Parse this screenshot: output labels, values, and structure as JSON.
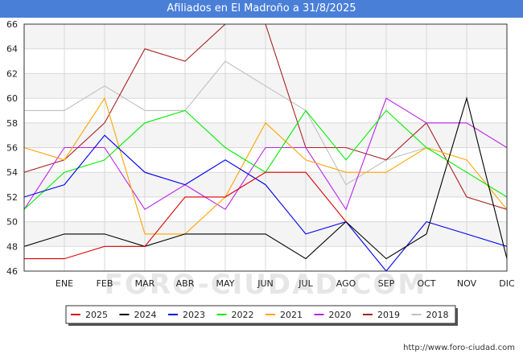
{
  "footer_url": "http://www.foro-ciudad.com",
  "watermark": "FORO-CIUDAD.COM",
  "chart_data": {
    "type": "line",
    "title": "Afiliados en El Madroño a 31/8/2025",
    "xlabel": "",
    "ylabel": "",
    "categories": [
      "",
      "ENE",
      "FEB",
      "MAR",
      "ABR",
      "MAY",
      "JUN",
      "JUL",
      "AGO",
      "SEP",
      "OCT",
      "NOV",
      "DIC"
    ],
    "ylim": [
      46,
      66
    ],
    "yticks": [
      46,
      48,
      50,
      52,
      54,
      56,
      58,
      60,
      62,
      64,
      66
    ],
    "grid": true,
    "legend_position": "bottom",
    "series": [
      {
        "name": "2025",
        "color": "#dd0000",
        "values": [
          47,
          47,
          48,
          48,
          52,
          52,
          54,
          54,
          50,
          null,
          null,
          null,
          null
        ]
      },
      {
        "name": "2024",
        "color": "#000000",
        "values": [
          48,
          49,
          49,
          48,
          49,
          49,
          49,
          47,
          50,
          47,
          49,
          60,
          47
        ]
      },
      {
        "name": "2023",
        "color": "#0000ee",
        "values": [
          52,
          53,
          57,
          54,
          53,
          55,
          53,
          49,
          50,
          46,
          50,
          49,
          48
        ]
      },
      {
        "name": "2022",
        "color": "#00ee00",
        "values": [
          51,
          54,
          55,
          58,
          59,
          56,
          54,
          59,
          55,
          59,
          56,
          54,
          52
        ]
      },
      {
        "name": "2021",
        "color": "#ffa500",
        "values": [
          56,
          55,
          60,
          49,
          49,
          52,
          58,
          55,
          54,
          54,
          56,
          55,
          51
        ]
      },
      {
        "name": "2020",
        "color": "#bb22ee",
        "values": [
          51,
          56,
          56,
          51,
          53,
          51,
          56,
          56,
          51,
          60,
          58,
          58,
          56
        ]
      },
      {
        "name": "2019",
        "color": "#aa2222",
        "values": [
          54,
          55,
          58,
          64,
          63,
          66,
          66,
          56,
          56,
          55,
          58,
          52,
          51
        ]
      },
      {
        "name": "2018",
        "color": "#c0c0c0",
        "values": [
          59,
          59,
          61,
          59,
          59,
          63,
          61,
          59,
          53,
          55,
          56,
          null,
          null
        ]
      }
    ]
  }
}
